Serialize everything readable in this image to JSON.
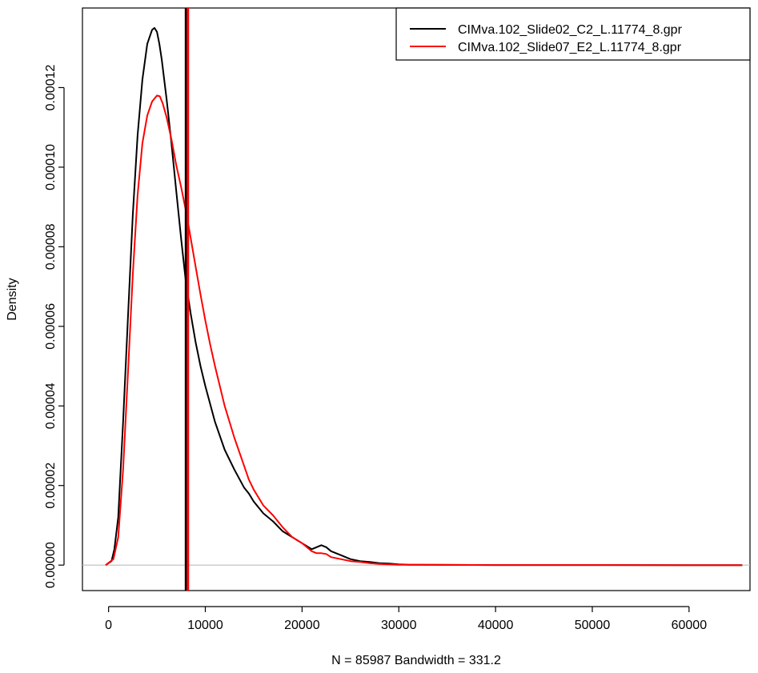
{
  "chart_data": {
    "type": "line",
    "title": "",
    "xlabel": "N = 85987   Bandwidth = 331.2",
    "ylabel": "Density",
    "xlim": [
      -2700,
      66300
    ],
    "ylim": [
      -6.4e-06,
      0.00014
    ],
    "x_ticks": [
      0,
      10000,
      20000,
      30000,
      40000,
      50000,
      60000
    ],
    "y_ticks": [
      0,
      2e-05,
      4e-05,
      6e-05,
      8e-05,
      0.0001,
      0.00012
    ],
    "x_tick_labels": [
      "0",
      "10000",
      "20000",
      "30000",
      "40000",
      "50000",
      "60000"
    ],
    "y_tick_labels": [
      "0.00000",
      "0.00002",
      "0.00004",
      "0.00006",
      "0.00008",
      "0.00010",
      "0.00012"
    ],
    "baseline": {
      "y": 0,
      "color": "#bebebe"
    },
    "legend_position": "top-right",
    "series": [
      {
        "name": "CIMva.102_Slide02_C2_L.11774_8.gpr",
        "color": "#000000",
        "x": [
          -300,
          300,
          600,
          1000,
          1500,
          2000,
          2500,
          3000,
          3500,
          4000,
          4500,
          4750,
          5000,
          5250,
          5500,
          6000,
          6500,
          7000,
          7500,
          8000,
          8500,
          9000,
          9500,
          10000,
          11000,
          12000,
          13000,
          14000,
          14500,
          15000,
          15500,
          16000,
          17000,
          18000,
          19000,
          20000,
          21000,
          21500,
          22000,
          22500,
          23000,
          24000,
          25000,
          26000,
          27000,
          28000,
          29000,
          30000,
          31000,
          32000,
          35000,
          40000,
          50000,
          60000,
          65500
        ],
        "y": [
          0,
          1e-06,
          4e-06,
          1.2e-05,
          3.6e-05,
          6.2e-05,
          8.8e-05,
          0.000108,
          0.000122,
          0.000131,
          0.0001345,
          0.000135,
          0.000134,
          0.000131,
          0.000127,
          0.000117,
          0.000106,
          9.4e-05,
          8.2e-05,
          7.1e-05,
          6.3e-05,
          5.6e-05,
          5e-05,
          4.5e-05,
          3.6e-05,
          2.9e-05,
          2.4e-05,
          1.95e-05,
          1.8e-05,
          1.6e-05,
          1.45e-05,
          1.3e-05,
          1.1e-05,
          8.5e-06,
          7e-06,
          5.5e-06,
          4e-06,
          4.5e-06,
          5e-06,
          4.5e-06,
          3.5e-06,
          2.5e-06,
          1.5e-06,
          1e-06,
          8e-07,
          5e-07,
          4e-07,
          2e-07,
          1e-07,
          1e-07,
          5e-08,
          2e-08,
          1e-08,
          0.0,
          0.0
        ]
      },
      {
        "name": "CIMva.102_Slide07_E2_L.11774_8.gpr",
        "color": "#ff0000",
        "x": [
          -300,
          500,
          1000,
          1500,
          2000,
          2500,
          3000,
          3500,
          4000,
          4500,
          5000,
          5300,
          5600,
          6000,
          6500,
          7000,
          7500,
          8000,
          8500,
          9000,
          9500,
          10000,
          10500,
          11000,
          12000,
          13000,
          14000,
          14500,
          15000,
          16000,
          17000,
          18000,
          19000,
          20000,
          21000,
          21500,
          22000,
          22500,
          23000,
          24000,
          25000,
          26000,
          27000,
          28000,
          30000,
          32000,
          35000,
          40000,
          50000,
          60000,
          65500
        ],
        "y": [
          0,
          1.5e-06,
          7e-06,
          2.4e-05,
          4.8e-05,
          7.3e-05,
          9.3e-05,
          0.000106,
          0.000113,
          0.0001165,
          0.000118,
          0.0001178,
          0.000116,
          0.0001125,
          0.000107,
          0.0001005,
          9.5e-05,
          8.9e-05,
          8.2e-05,
          7.5e-05,
          6.8e-05,
          6.15e-05,
          5.55e-05,
          5e-05,
          4e-05,
          3.2e-05,
          2.5e-05,
          2.15e-05,
          1.9e-05,
          1.5e-05,
          1.25e-05,
          9.5e-06,
          7e-06,
          5.5e-06,
          3.5e-06,
          3e-06,
          3e-06,
          2.8e-06,
          2e-06,
          1.5e-06,
          1e-06,
          8e-07,
          5e-07,
          3e-07,
          1e-07,
          1e-07,
          5e-08,
          2e-08,
          1e-08,
          0.0,
          0.0
        ]
      }
    ],
    "vlines": [
      {
        "x": 8000,
        "color": "#000000"
      },
      {
        "x": 8200,
        "color": "#ff0000"
      }
    ]
  }
}
